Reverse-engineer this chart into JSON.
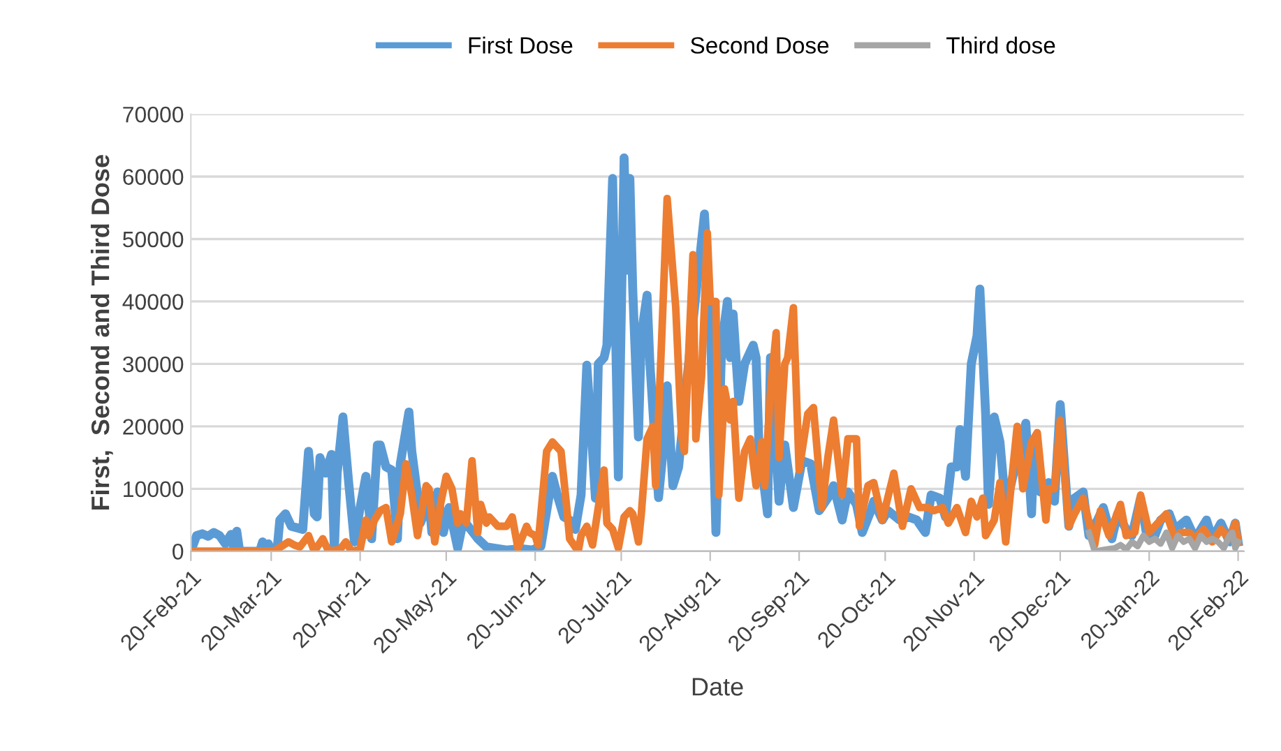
{
  "chart_data": {
    "type": "line",
    "xlabel": "Date",
    "ylabel": "First,  Second and Third Dose",
    "xlim": [
      "2021-02-20",
      "2022-02-22"
    ],
    "xticks": [
      {
        "value": "2021-02-20",
        "label": "20-Feb-21"
      },
      {
        "value": "2021-03-20",
        "label": "20-Mar-21"
      },
      {
        "value": "2021-04-20",
        "label": "20-Apr-21"
      },
      {
        "value": "2021-05-20",
        "label": "20-May-21"
      },
      {
        "value": "2021-06-20",
        "label": "20-Jun-21"
      },
      {
        "value": "2021-07-20",
        "label": "20-Jul-21"
      },
      {
        "value": "2021-08-20",
        "label": "20-Aug-21"
      },
      {
        "value": "2021-09-20",
        "label": "20-Sep-21"
      },
      {
        "value": "2021-10-20",
        "label": "20-Oct-21"
      },
      {
        "value": "2021-11-20",
        "label": "20-Nov-21"
      },
      {
        "value": "2021-12-20",
        "label": "20-Dec-21"
      },
      {
        "value": "2022-01-20",
        "label": "20-Jan-22"
      },
      {
        "value": "2022-02-20",
        "label": "20-Feb-22"
      }
    ],
    "ylim": [
      0,
      70000
    ],
    "yticks": [
      0,
      10000,
      20000,
      30000,
      40000,
      50000,
      60000,
      70000
    ],
    "grid": "y",
    "legend": "top",
    "marker": "none",
    "line_style": "solid",
    "series": [
      {
        "name": "First Dose",
        "color": "#5b9bd5",
        "x": [
          "2021-02-20",
          "2021-02-22",
          "2021-02-24",
          "2021-02-26",
          "2021-02-28",
          "2021-03-02",
          "2021-03-04",
          "2021-03-06",
          "2021-03-07",
          "2021-03-08",
          "2021-03-09",
          "2021-03-16",
          "2021-03-17",
          "2021-03-18",
          "2021-03-19",
          "2021-03-20",
          "2021-03-22",
          "2021-03-23",
          "2021-03-25",
          "2021-03-27",
          "2021-03-31",
          "2021-04-02",
          "2021-04-04",
          "2021-04-05",
          "2021-04-06",
          "2021-04-08",
          "2021-04-10",
          "2021-04-11",
          "2021-04-12",
          "2021-04-14",
          "2021-04-16",
          "2021-04-18",
          "2021-04-20",
          "2021-04-22",
          "2021-04-24",
          "2021-04-26",
          "2021-04-27",
          "2021-04-29",
          "2021-05-01",
          "2021-05-03",
          "2021-05-04",
          "2021-05-07",
          "2021-05-08",
          "2021-05-10",
          "2021-05-11",
          "2021-05-14",
          "2021-05-15",
          "2021-05-17",
          "2021-05-19",
          "2021-05-21",
          "2021-05-24",
          "2021-05-26",
          "2021-05-31",
          "2021-06-03",
          "2021-06-10",
          "2021-06-15",
          "2021-06-19",
          "2021-06-22",
          "2021-06-26",
          "2021-06-28",
          "2021-06-30",
          "2021-07-02",
          "2021-07-04",
          "2021-07-06",
          "2021-07-08",
          "2021-07-10",
          "2021-07-11",
          "2021-07-12",
          "2021-07-14",
          "2021-07-15",
          "2021-07-17",
          "2021-07-19",
          "2021-07-21",
          "2021-07-22",
          "2021-07-23",
          "2021-07-24",
          "2021-07-26",
          "2021-07-27",
          "2021-07-29",
          "2021-07-30",
          "2021-08-02",
          "2021-08-04",
          "2021-08-05",
          "2021-08-07",
          "2021-08-09",
          "2021-08-12",
          "2021-08-18",
          "2021-08-20",
          "2021-08-22",
          "2021-08-24",
          "2021-08-26",
          "2021-08-27",
          "2021-08-28",
          "2021-08-30",
          "2021-09-01",
          "2021-09-04",
          "2021-09-05",
          "2021-09-06",
          "2021-09-09",
          "2021-09-10",
          "2021-09-13",
          "2021-09-15",
          "2021-09-18",
          "2021-09-21",
          "2021-09-24",
          "2021-09-27",
          "2021-09-30",
          "2021-10-02",
          "2021-10-05",
          "2021-10-07",
          "2021-10-10",
          "2021-10-12",
          "2021-10-15",
          "2021-10-16",
          "2021-10-19",
          "2021-10-21",
          "2021-10-25",
          "2021-10-28",
          "2021-10-31",
          "2021-11-03",
          "2021-11-05",
          "2021-11-08",
          "2021-11-10",
          "2021-11-12",
          "2021-11-14",
          "2021-11-15",
          "2021-11-17",
          "2021-11-19",
          "2021-11-21",
          "2021-11-22",
          "2021-11-24",
          "2021-11-25",
          "2021-11-27",
          "2021-11-29",
          "2021-12-01",
          "2021-12-03",
          "2021-12-06",
          "2021-12-08",
          "2021-12-10",
          "2021-12-11",
          "2021-12-13",
          "2021-12-16",
          "2021-12-18",
          "2021-12-20",
          "2021-12-23",
          "2021-12-25",
          "2021-12-28",
          "2021-12-30",
          "2022-01-02",
          "2022-01-04",
          "2022-01-07",
          "2022-01-09",
          "2022-01-12",
          "2022-01-14",
          "2022-01-17",
          "2022-01-19",
          "2022-01-22",
          "2022-01-24",
          "2022-01-27",
          "2022-01-29",
          "2022-02-02",
          "2022-02-05",
          "2022-02-09",
          "2022-02-11",
          "2022-02-14",
          "2022-02-17",
          "2022-02-19",
          "2022-02-20"
        ],
        "values": [
          0,
          2500,
          2800,
          2400,
          3000,
          2500,
          1200,
          2700,
          500,
          3200,
          0,
          0,
          1500,
          0,
          1200,
          0,
          0,
          5000,
          6000,
          4000,
          3500,
          16000,
          6000,
          5500,
          15000,
          12500,
          15500,
          200,
          12500,
          21500,
          11000,
          1500,
          7000,
          12000,
          2000,
          17000,
          17000,
          13500,
          13000,
          2000,
          14000,
          22300,
          16000,
          9000,
          4500,
          8000,
          3000,
          9500,
          3000,
          7000,
          500,
          5000,
          2000,
          700,
          200,
          400,
          200,
          800,
          12000,
          8500,
          5500,
          5000,
          3500,
          9000,
          29800,
          16000,
          8500,
          30000,
          31000,
          33000,
          59700,
          11900,
          63000,
          45000,
          59700,
          42000,
          18300,
          34700,
          41000,
          30000,
          8600,
          18000,
          26500,
          10500,
          13500,
          28000,
          54000,
          37500,
          3000,
          33000,
          40000,
          31000,
          38000,
          24000,
          30000,
          33000,
          31000,
          17000,
          6000,
          31000,
          8000,
          17000,
          7000,
          14500,
          14000,
          6500,
          8500,
          10500,
          5000,
          9500,
          7500,
          3000,
          6500,
          8000,
          5000,
          6500,
          5000,
          5500,
          5000,
          3000,
          9000,
          8500,
          5500,
          13500,
          13500,
          19500,
          12000,
          30000,
          34500,
          42000,
          22000,
          7500,
          21500,
          17500,
          7000,
          11000,
          17000,
          20500,
          6000,
          17500,
          9500,
          11000,
          8000,
          23500,
          4000,
          8500,
          9500,
          2500,
          5000,
          7000,
          2000,
          6000,
          3500,
          2500,
          8500,
          3000,
          2500,
          5000,
          6000,
          3500,
          5000,
          2000,
          5000,
          2000,
          4500,
          1500,
          4500,
          1500
        ]
      },
      {
        "name": "Second Dose",
        "color": "#ed7d31",
        "x": [
          "2021-02-20",
          "2021-03-21",
          "2021-03-26",
          "2021-03-28",
          "2021-03-30",
          "2021-04-02",
          "2021-04-04",
          "2021-04-07",
          "2021-04-09",
          "2021-04-13",
          "2021-04-15",
          "2021-04-17",
          "2021-04-20",
          "2021-04-22",
          "2021-04-23",
          "2021-04-25",
          "2021-04-27",
          "2021-04-29",
          "2021-05-01",
          "2021-05-04",
          "2021-05-06",
          "2021-05-08",
          "2021-05-10",
          "2021-05-13",
          "2021-05-14",
          "2021-05-16",
          "2021-05-18",
          "2021-05-20",
          "2021-05-22",
          "2021-05-24",
          "2021-05-25",
          "2021-05-27",
          "2021-05-29",
          "2021-05-31",
          "2021-06-01",
          "2021-06-03",
          "2021-06-04",
          "2021-06-07",
          "2021-06-10",
          "2021-06-12",
          "2021-06-14",
          "2021-06-17",
          "2021-06-18",
          "2021-06-20",
          "2021-06-21",
          "2021-06-24",
          "2021-06-26",
          "2021-06-29",
          "2021-07-01",
          "2021-07-02",
          "2021-07-05",
          "2021-07-06",
          "2021-07-08",
          "2021-07-10",
          "2021-07-12",
          "2021-07-14",
          "2021-07-15",
          "2021-07-17",
          "2021-07-19",
          "2021-07-21",
          "2021-07-23",
          "2021-07-24",
          "2021-07-26",
          "2021-07-27",
          "2021-07-29",
          "2021-07-31",
          "2021-08-01",
          "2021-08-03",
          "2021-08-05",
          "2021-08-08",
          "2021-08-10",
          "2021-08-11",
          "2021-08-14",
          "2021-08-15",
          "2021-08-17",
          "2021-08-19",
          "2021-08-20",
          "2021-08-22",
          "2021-08-23",
          "2021-08-25",
          "2021-08-27",
          "2021-08-28",
          "2021-08-30",
          "2021-09-01",
          "2021-09-03",
          "2021-09-05",
          "2021-09-07",
          "2021-09-08",
          "2021-09-10",
          "2021-09-12",
          "2021-09-13",
          "2021-09-15",
          "2021-09-16",
          "2021-09-18",
          "2021-09-20",
          "2021-09-23",
          "2021-09-25",
          "2021-09-28",
          "2021-09-30",
          "2021-10-02",
          "2021-10-05",
          "2021-10-07",
          "2021-10-10",
          "2021-10-11",
          "2021-10-14",
          "2021-10-16",
          "2021-10-19",
          "2021-10-23",
          "2021-10-26",
          "2021-10-29",
          "2021-11-01",
          "2021-11-04",
          "2021-11-06",
          "2021-11-09",
          "2021-11-11",
          "2021-11-14",
          "2021-11-17",
          "2021-11-19",
          "2021-11-21",
          "2021-11-23",
          "2021-11-24",
          "2021-11-27",
          "2021-11-29",
          "2021-12-01",
          "2021-12-03",
          "2021-12-05",
          "2021-12-07",
          "2021-12-10",
          "2021-12-12",
          "2021-12-15",
          "2021-12-16",
          "2021-12-18",
          "2021-12-20",
          "2021-12-23",
          "2021-12-25",
          "2021-12-28",
          "2022-01-01",
          "2022-01-03",
          "2022-01-06",
          "2022-01-10",
          "2022-01-12",
          "2022-01-15",
          "2022-01-17",
          "2022-01-20",
          "2022-01-23",
          "2022-01-26",
          "2022-01-29",
          "2022-01-31",
          "2022-02-03",
          "2022-02-05",
          "2022-02-08",
          "2022-02-11",
          "2022-02-14",
          "2022-02-17",
          "2022-02-19",
          "2022-02-20"
        ],
        "values": [
          0,
          0,
          1500,
          1000,
          700,
          2500,
          0,
          2000,
          0,
          300,
          1500,
          0,
          300,
          5000,
          2500,
          5000,
          6500,
          7000,
          1500,
          6000,
          14000,
          9000,
          2500,
          10500,
          10000,
          1500,
          7500,
          12000,
          10000,
          4500,
          6000,
          4500,
          14500,
          3000,
          7500,
          4500,
          5500,
          4000,
          4000,
          5500,
          500,
          4000,
          3000,
          2500,
          1000,
          16000,
          17500,
          16000,
          7000,
          2000,
          0,
          2500,
          4000,
          1000,
          7000,
          13000,
          4500,
          3500,
          500,
          5500,
          6500,
          6000,
          1500,
          6000,
          18000,
          20000,
          10500,
          33000,
          56500,
          39000,
          18500,
          16000,
          47500,
          18000,
          28000,
          51000,
          40000,
          40000,
          9000,
          26000,
          21000,
          24000,
          8500,
          16000,
          18000,
          10500,
          17500,
          10500,
          25500,
          35000,
          15000,
          30000,
          31000,
          39000,
          13000,
          22000,
          23000,
          7000,
          15000,
          21000,
          9000,
          18000,
          18000,
          4000,
          10500,
          11000,
          5000,
          12500,
          4000,
          10000,
          7000,
          7000,
          6500,
          7000,
          4500,
          7000,
          3000,
          8000,
          5500,
          8500,
          2500,
          5000,
          11000,
          1500,
          11000,
          20000,
          10000,
          17500,
          19000,
          5000,
          10000,
          10000,
          21000,
          4000,
          6000,
          8500,
          1000,
          6500,
          2500,
          7500,
          2500,
          3000,
          9000,
          3000,
          4500,
          6000,
          2000,
          3000,
          3000,
          2000,
          3500,
          1500,
          3500,
          2000,
          4500,
          1500
        ]
      },
      {
        "name": "Third dose",
        "color": "#a5a5a5",
        "x": [
          "2021-12-30",
          "2022-01-01",
          "2022-01-05",
          "2022-01-08",
          "2022-01-10",
          "2022-01-12",
          "2022-01-14",
          "2022-01-16",
          "2022-01-18",
          "2022-01-20",
          "2022-01-22",
          "2022-01-24",
          "2022-01-26",
          "2022-01-28",
          "2022-01-30",
          "2022-02-01",
          "2022-02-03",
          "2022-02-05",
          "2022-02-07",
          "2022-02-09",
          "2022-02-11",
          "2022-02-13",
          "2022-02-15",
          "2022-02-17",
          "2022-02-18",
          "2022-02-19",
          "2022-02-20"
        ],
        "values": [
          3000,
          0,
          300,
          500,
          1000,
          300,
          1500,
          800,
          2500,
          1500,
          2000,
          1200,
          3000,
          500,
          2500,
          1500,
          2000,
          500,
          2500,
          1500,
          2000,
          1500,
          500,
          2500,
          3000,
          500,
          1500
        ]
      }
    ]
  }
}
